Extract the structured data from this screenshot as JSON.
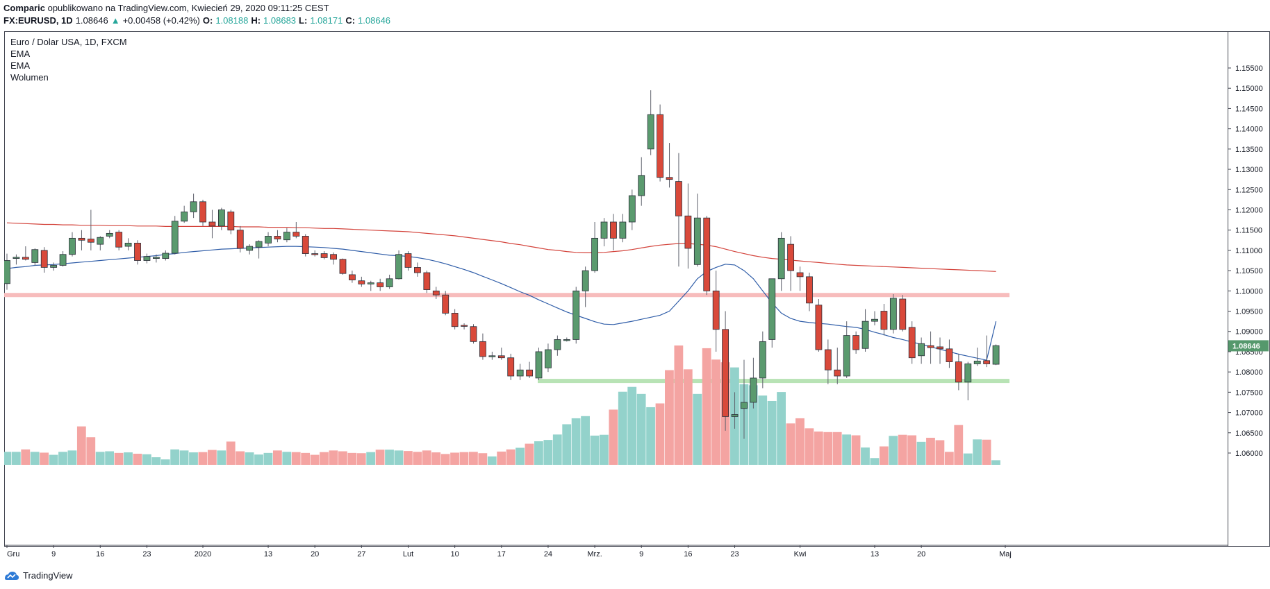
{
  "header": {
    "author": "Comparic",
    "published": "opublikowano na TradingView.com, Kwiecień 29, 2020 09:11:25 CEST",
    "symbol": "FX:EURUSD, 1D",
    "price": "1.08646",
    "change_arrow": "▲",
    "change": "+0.00458 (+0.42%)",
    "o_label": "O:",
    "o_value": "1.08188",
    "h_label": "H:",
    "h_value": "1.08683",
    "l_label": "L:",
    "l_value": "1.08171",
    "c_label": "C:",
    "c_value": "1.08646"
  },
  "legend": {
    "title": "Euro / Dolar USA, 1D, FXCM",
    "ema1": "EMA",
    "ema2": "EMA",
    "volume": "Wolumen"
  },
  "footer": {
    "brand": "TradingView",
    "logo_icon": "tradingview-logo-icon"
  },
  "colors": {
    "up": "#5a9a6e",
    "down": "#d9493a",
    "vol_up": "#93d2cb",
    "vol_down": "#f4a4a2",
    "ema_fast": "#2f5da8",
    "ema_slow": "#d3423a",
    "resistance_zone": "#f7bcbc",
    "support_zone": "#b8e3b5",
    "last_price_bg": "#55986c"
  },
  "chart_data": {
    "type": "candlestick",
    "title": "Euro / Dolar USA, 1D, FXCM",
    "y_axis": {
      "range": [
        1.055,
        1.158
      ],
      "ticks": [
        "1.15500",
        "1.15000",
        "1.14500",
        "1.14000",
        "1.13500",
        "1.13000",
        "1.12500",
        "1.12000",
        "1.11500",
        "1.11000",
        "1.10500",
        "1.10000",
        "1.09500",
        "1.09000",
        "1.08500",
        "1.08000",
        "1.07500",
        "1.07000",
        "1.06500",
        "1.06000"
      ],
      "last_price_label": "1.08646",
      "last_price": 1.08646
    },
    "x_axis": {
      "labels": [
        {
          "text": "Gru",
          "index": 0
        },
        {
          "text": "9",
          "index": 5
        },
        {
          "text": "16",
          "index": 10
        },
        {
          "text": "23",
          "index": 15
        },
        {
          "text": "2020",
          "index": 21
        },
        {
          "text": "13",
          "index": 28
        },
        {
          "text": "20",
          "index": 33
        },
        {
          "text": "27",
          "index": 38
        },
        {
          "text": "Lut",
          "index": 43
        },
        {
          "text": "10",
          "index": 48
        },
        {
          "text": "17",
          "index": 53
        },
        {
          "text": "24",
          "index": 58
        },
        {
          "text": "Mrz.",
          "index": 63
        },
        {
          "text": "9",
          "index": 68
        },
        {
          "text": "16",
          "index": 73
        },
        {
          "text": "23",
          "index": 78
        },
        {
          "text": "Kwi",
          "index": 85
        },
        {
          "text": "13",
          "index": 93
        },
        {
          "text": "20",
          "index": 98
        },
        {
          "text": "Maj",
          "index": 107
        }
      ]
    },
    "ohlc": [
      [
        1.1018,
        1.1092,
        1.1003,
        1.1075
      ],
      [
        1.108,
        1.109,
        1.1065,
        1.1083
      ],
      [
        1.1083,
        1.111,
        1.1075,
        1.1078
      ],
      [
        1.107,
        1.1105,
        1.1062,
        1.1102
      ],
      [
        1.11,
        1.1108,
        1.1045,
        1.1058
      ],
      [
        1.1058,
        1.107,
        1.105,
        1.1063
      ],
      [
        1.1063,
        1.1098,
        1.106,
        1.109
      ],
      [
        1.109,
        1.1145,
        1.1085,
        1.113
      ],
      [
        1.113,
        1.115,
        1.11,
        1.1125
      ],
      [
        1.1128,
        1.12,
        1.11,
        1.112
      ],
      [
        1.1115,
        1.1135,
        1.11,
        1.1132
      ],
      [
        1.1135,
        1.115,
        1.113,
        1.1142
      ],
      [
        1.1145,
        1.115,
        1.11,
        1.1108
      ],
      [
        1.111,
        1.113,
        1.11,
        1.1118
      ],
      [
        1.1118,
        1.1125,
        1.1065,
        1.1075
      ],
      [
        1.1075,
        1.1092,
        1.1068,
        1.1085
      ],
      [
        1.108,
        1.109,
        1.107,
        1.1083
      ],
      [
        1.108,
        1.11,
        1.1075,
        1.1093
      ],
      [
        1.1093,
        1.1185,
        1.109,
        1.1172
      ],
      [
        1.1172,
        1.121,
        1.1168,
        1.1195
      ],
      [
        1.1195,
        1.124,
        1.118,
        1.122
      ],
      [
        1.122,
        1.1225,
        1.116,
        1.117
      ],
      [
        1.117,
        1.12,
        1.113,
        1.116
      ],
      [
        1.116,
        1.1205,
        1.115,
        1.12
      ],
      [
        1.1195,
        1.12,
        1.114,
        1.115
      ],
      [
        1.115,
        1.116,
        1.1095,
        1.1105
      ],
      [
        1.11,
        1.1115,
        1.109,
        1.111
      ],
      [
        1.1108,
        1.1125,
        1.108,
        1.1122
      ],
      [
        1.1118,
        1.1145,
        1.111,
        1.1135
      ],
      [
        1.1135,
        1.115,
        1.112,
        1.1128
      ],
      [
        1.1126,
        1.1155,
        1.112,
        1.1145
      ],
      [
        1.1145,
        1.117,
        1.113,
        1.1135
      ],
      [
        1.1135,
        1.114,
        1.1085,
        1.1092
      ],
      [
        1.1092,
        1.11,
        1.1085,
        1.109
      ],
      [
        1.1092,
        1.1098,
        1.1078,
        1.1082
      ],
      [
        1.109,
        1.1095,
        1.1065,
        1.1078
      ],
      [
        1.1078,
        1.108,
        1.104,
        1.1043
      ],
      [
        1.104,
        1.105,
        1.102,
        1.1027
      ],
      [
        1.1025,
        1.1035,
        1.101,
        1.1017
      ],
      [
        1.1017,
        1.1025,
        1.1,
        1.102
      ],
      [
        1.102,
        1.103,
        1.1,
        1.101
      ],
      [
        1.101,
        1.104,
        1.1005,
        1.103
      ],
      [
        1.103,
        1.11,
        1.1028,
        1.109
      ],
      [
        1.1092,
        1.1098,
        1.105,
        1.1058
      ],
      [
        1.1058,
        1.107,
        1.1035,
        1.1045
      ],
      [
        1.1045,
        1.105,
        1.0995,
        1.1003
      ],
      [
        1.1,
        1.101,
        1.098,
        1.099
      ],
      [
        1.099,
        1.1,
        1.094,
        1.0945
      ],
      [
        1.0945,
        1.0955,
        1.0905,
        1.0912
      ],
      [
        1.0915,
        1.092,
        1.0905,
        1.0913
      ],
      [
        1.0912,
        1.0918,
        1.087,
        1.0875
      ],
      [
        1.0875,
        1.0895,
        1.083,
        1.0838
      ],
      [
        1.084,
        1.085,
        1.083,
        1.084
      ],
      [
        1.084,
        1.086,
        1.083,
        1.0835
      ],
      [
        1.0835,
        1.0845,
        1.078,
        1.079
      ],
      [
        1.079,
        1.082,
        1.078,
        1.0805
      ],
      [
        1.0805,
        1.0825,
        1.0785,
        1.079
      ],
      [
        1.0785,
        1.086,
        1.078,
        1.085
      ],
      [
        1.081,
        1.087,
        1.08,
        1.0855
      ],
      [
        1.0855,
        1.089,
        1.084,
        1.088
      ],
      [
        1.088,
        1.0885,
        1.0875,
        1.088
      ],
      [
        1.088,
        1.101,
        1.087,
        1.1
      ],
      [
        1.1,
        1.106,
        1.096,
        1.105
      ],
      [
        1.105,
        1.117,
        1.1045,
        1.113
      ],
      [
        1.113,
        1.118,
        1.111,
        1.117
      ],
      [
        1.117,
        1.119,
        1.11,
        1.113
      ],
      [
        1.113,
        1.119,
        1.112,
        1.117
      ],
      [
        1.117,
        1.125,
        1.115,
        1.1235
      ],
      [
        1.1235,
        1.133,
        1.121,
        1.1285
      ],
      [
        1.135,
        1.1495,
        1.1335,
        1.1435
      ],
      [
        1.1435,
        1.146,
        1.127,
        1.128
      ],
      [
        1.128,
        1.1365,
        1.1255,
        1.1275
      ],
      [
        1.127,
        1.134,
        1.106,
        1.1185
      ],
      [
        1.1185,
        1.1265,
        1.1055,
        1.1105
      ],
      [
        1.1065,
        1.124,
        1.106,
        1.118
      ],
      [
        1.118,
        1.1185,
        1.099,
        1.1
      ],
      [
        1.1,
        1.105,
        1.085,
        1.0905
      ],
      [
        1.0905,
        1.095,
        1.0655,
        1.069
      ],
      [
        1.069,
        1.075,
        1.066,
        1.0695
      ],
      [
        1.071,
        1.083,
        1.0635,
        1.0725
      ],
      [
        1.0725,
        1.0835,
        1.071,
        1.0785
      ],
      [
        1.0785,
        1.09,
        1.076,
        1.0875
      ],
      [
        1.088,
        1.103,
        1.086,
        1.103
      ],
      [
        1.103,
        1.1145,
        1.1,
        1.113
      ],
      [
        1.1115,
        1.1135,
        1.1,
        1.105
      ],
      [
        1.1045,
        1.106,
        1.1,
        1.1035
      ],
      [
        1.1035,
        1.1045,
        1.095,
        1.097
      ],
      [
        1.0965,
        1.098,
        1.085,
        1.0855
      ],
      [
        1.0855,
        1.088,
        1.077,
        1.0805
      ],
      [
        1.0805,
        1.086,
        1.077,
        1.079
      ],
      [
        1.079,
        1.0925,
        1.0785,
        1.089
      ],
      [
        1.089,
        1.09,
        1.0845,
        1.0855
      ],
      [
        1.0858,
        1.0955,
        1.085,
        1.0925
      ],
      [
        1.0925,
        1.095,
        1.0915,
        1.093
      ],
      [
        1.095,
        1.0968,
        1.089,
        1.0905
      ],
      [
        1.0905,
        1.0992,
        1.0895,
        1.0982
      ],
      [
        1.098,
        1.099,
        1.09,
        1.0905
      ],
      [
        1.091,
        1.0925,
        1.082,
        1.0835
      ],
      [
        1.084,
        1.0885,
        1.082,
        1.087
      ],
      [
        1.0865,
        1.09,
        1.082,
        1.086
      ],
      [
        1.0862,
        1.0885,
        1.082,
        1.0857
      ],
      [
        1.0857,
        1.088,
        1.081,
        1.0825
      ],
      [
        1.0825,
        1.0845,
        1.0755,
        1.0775
      ],
      [
        1.0775,
        1.0825,
        1.073,
        1.082
      ],
      [
        1.082,
        1.086,
        1.0815,
        1.0827
      ],
      [
        1.0828,
        1.089,
        1.0812,
        1.082
      ],
      [
        1.0819,
        1.0868,
        1.0817,
        1.0865
      ]
    ],
    "volume": [
      4.8,
      4.8,
      5.7,
      4.8,
      4.5,
      3.7,
      4.8,
      5.3,
      14.2,
      10.2,
      4.8,
      5.0,
      4.4,
      4.6,
      4.1,
      3.9,
      2.8,
      2.0,
      5.7,
      5.3,
      4.6,
      4.7,
      5.5,
      5.3,
      8.6,
      5.0,
      4.6,
      3.8,
      4.4,
      5.3,
      4.8,
      4.7,
      4.4,
      3.7,
      4.7,
      5.3,
      5.0,
      4.4,
      4.3,
      4.7,
      5.6,
      5.6,
      5.3,
      5.1,
      4.8,
      5.3,
      4.6,
      4.0,
      4.5,
      4.7,
      4.8,
      4.3,
      3.1,
      4.9,
      5.7,
      6.3,
      7.8,
      8.7,
      9.2,
      11.2,
      15.0,
      17.2,
      18.0,
      10.8,
      11.1,
      20.4,
      27.0,
      28.8,
      26.2,
      21.3,
      22.7,
      35.0,
      44.1,
      35.3,
      26.2,
      43.1,
      38.9,
      37.9,
      36.0,
      29.8,
      29.4,
      25.6,
      23.6,
      26.9,
      15.3,
      17.2,
      13.5,
      12.3,
      12.1,
      12.1,
      11.2,
      10.9,
      6.4,
      2.5,
      6.8,
      10.7,
      11.1,
      10.9,
      8.5,
      10.0,
      9.1,
      4.8,
      14.7,
      4.2,
      9.4,
      9.3,
      1.7
    ],
    "ema_fast": [
      1.1055,
      1.1058,
      1.106,
      1.1063,
      1.1064,
      1.1065,
      1.1067,
      1.1069,
      1.1071,
      1.1073,
      1.1075,
      1.1077,
      1.1079,
      1.1081,
      1.1083,
      1.1085,
      1.1087,
      1.109,
      1.1092,
      1.1095,
      1.1097,
      1.1099,
      1.1101,
      1.1103,
      1.1104,
      1.1105,
      1.1106,
      1.1107,
      1.1108,
      1.1109,
      1.111,
      1.111,
      1.1109,
      1.1108,
      1.1107,
      1.1105,
      1.1103,
      1.11,
      1.1097,
      1.1094,
      1.1091,
      1.1088,
      1.1087,
      1.1085,
      1.1082,
      1.1078,
      1.1073,
      1.1067,
      1.106,
      1.1053,
      1.1045,
      1.1036,
      1.1027,
      1.1018,
      1.1008,
      1.0998,
      1.0989,
      1.0978,
      1.0968,
      1.0958,
      1.0948,
      1.094,
      1.0932,
      1.0924,
      1.0918,
      1.0917,
      1.0921,
      1.0925,
      1.093,
      1.0935,
      1.094,
      1.095,
      1.0975,
      1.1,
      1.103,
      1.1048,
      1.1058,
      1.1066,
      1.1064,
      1.105,
      1.103,
      1.1,
      1.097,
      1.0945,
      1.0932,
      1.0925,
      1.0922,
      1.092,
      1.0918,
      1.0915,
      1.0912,
      1.091,
      1.0905,
      1.0898,
      1.0892,
      1.0885,
      1.088,
      1.0874,
      1.0868,
      1.0862,
      1.0856,
      1.085,
      1.0844,
      1.0839,
      1.0834,
      1.0829,
      1.0925
    ],
    "ema_slow": [
      1.1168,
      1.1167,
      1.1166,
      1.1165,
      1.1164,
      1.1164,
      1.1163,
      1.1163,
      1.1162,
      1.1162,
      1.1162,
      1.1161,
      1.1161,
      1.1161,
      1.116,
      1.116,
      1.116,
      1.1159,
      1.1159,
      1.1159,
      1.1159,
      1.1159,
      1.1159,
      1.1159,
      1.1159,
      1.1158,
      1.1158,
      1.1158,
      1.1157,
      1.1157,
      1.1157,
      1.1156,
      1.1156,
      1.1155,
      1.1154,
      1.1154,
      1.1153,
      1.1152,
      1.1151,
      1.115,
      1.1149,
      1.1148,
      1.1147,
      1.1146,
      1.1144,
      1.1142,
      1.114,
      1.1138,
      1.1136,
      1.1133,
      1.113,
      1.1127,
      1.1124,
      1.1121,
      1.1117,
      1.1114,
      1.111,
      1.1106,
      1.1102,
      1.11,
      1.1097,
      1.1095,
      1.1094,
      1.1094,
      1.1095,
      1.1097,
      1.1099,
      1.1102,
      1.1106,
      1.111,
      1.1113,
      1.1115,
      1.1117,
      1.1117,
      1.1115,
      1.1113,
      1.1109,
      1.1103,
      1.1097,
      1.1092,
      1.1087,
      1.1083,
      1.108,
      1.1078,
      1.1076,
      1.1074,
      1.1072,
      1.107,
      1.1068,
      1.1066,
      1.1064,
      1.1063,
      1.1062,
      1.1061,
      1.106,
      1.1059,
      1.1058,
      1.1057,
      1.1056,
      1.1055,
      1.1054,
      1.1053,
      1.1052,
      1.1051,
      1.105,
      1.1049,
      1.1048
    ],
    "zones": [
      {
        "name": "resistance",
        "from": 1.0985,
        "to": 1.0995
      },
      {
        "name": "support",
        "from": 1.0773,
        "to": 1.0783
      }
    ]
  }
}
